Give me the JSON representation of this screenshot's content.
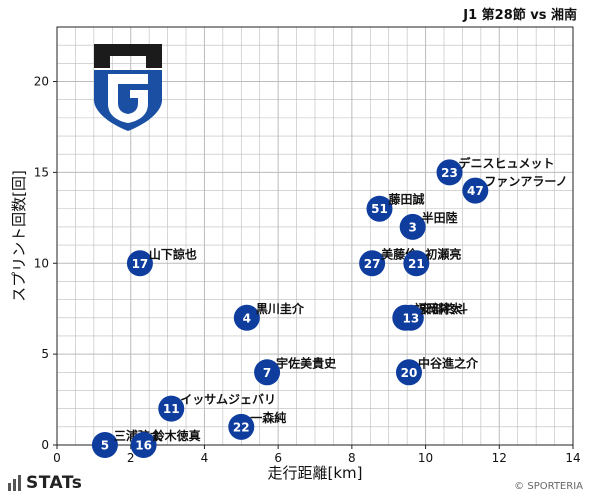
{
  "match_title": "J1 第28節 vs 湘南",
  "brand": "STATs",
  "credit": "© SPORTERIA",
  "colors": {
    "marker": "#0e3d9e",
    "marker_text": "#ffffff",
    "grid": "#bcbcbc",
    "crest_blue": "#1a4fa3",
    "crest_dark": "#1b1b1b"
  },
  "chart_data": {
    "type": "scatter",
    "xlabel": "走行距離[km]",
    "ylabel": "スプリント回数[回]",
    "xlim": [
      0,
      14
    ],
    "ylim": [
      0,
      23
    ],
    "xticks": [
      0,
      2,
      4,
      6,
      8,
      10,
      12,
      14
    ],
    "yticks": [
      0,
      5,
      10,
      15,
      20
    ],
    "grid": true,
    "points": [
      {
        "number": "23",
        "name": "デニスヒュメット",
        "x": 10.65,
        "y": 15.0
      },
      {
        "number": "47",
        "name": "ファンアラーノ",
        "x": 11.35,
        "y": 14.0
      },
      {
        "number": "51",
        "name": "藤田誠",
        "x": 8.75,
        "y": 13.0
      },
      {
        "number": "3",
        "name": "半田陸",
        "x": 9.65,
        "y": 12.0
      },
      {
        "number": "17",
        "name": "山下諒也",
        "x": 2.25,
        "y": 10.0
      },
      {
        "number": "27",
        "name": "美藤倫",
        "x": 8.55,
        "y": 10.0
      },
      {
        "number": "21",
        "name": "初瀬亮",
        "x": 9.75,
        "y": 10.0
      },
      {
        "number": "4",
        "name": "黒川圭介",
        "x": 5.15,
        "y": 7.0
      },
      {
        "number": "2",
        "name": "福岡将太",
        "x": 9.45,
        "y": 7.0
      },
      {
        "number": "13",
        "name": "安部柊斗",
        "x": 9.6,
        "y": 7.0
      },
      {
        "number": "7",
        "name": "宇佐美貴史",
        "x": 5.7,
        "y": 4.0
      },
      {
        "number": "20",
        "name": "中谷進之介",
        "x": 9.55,
        "y": 4.0
      },
      {
        "number": "11",
        "name": "イッサムジェバリ",
        "x": 3.1,
        "y": 2.0
      },
      {
        "number": "22",
        "name": "一森純",
        "x": 5.0,
        "y": 1.0
      },
      {
        "number": "5",
        "name": "三浦弦太",
        "x": 1.3,
        "y": 0.0
      },
      {
        "number": "16",
        "name": "鈴木徳真",
        "x": 2.35,
        "y": 0.0
      }
    ]
  }
}
